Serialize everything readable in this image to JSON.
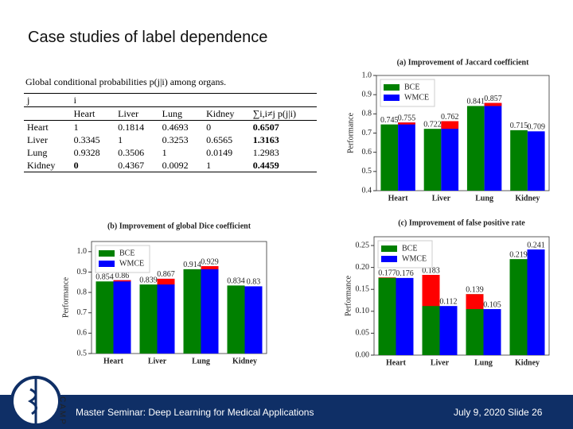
{
  "title": "Case studies of label dependence",
  "table": {
    "caption": "Global conditional probabilities p(j|i) among organs.",
    "header_top": [
      "j",
      "i"
    ],
    "columns": [
      "Heart",
      "Liver",
      "Lung",
      "Kidney",
      "∑i,i≠j p(j|i)"
    ],
    "rows": [
      [
        "Heart",
        "1",
        "0.1814",
        "0.4693",
        "0",
        "0.6507"
      ],
      [
        "Liver",
        "0.3345",
        "1",
        "0.3253",
        "0.6565",
        "1.3163"
      ],
      [
        "Lung",
        "0.9328",
        "0.3506",
        "1",
        "0.0149",
        "1.2983"
      ],
      [
        "Kidney",
        "0",
        "0.4367",
        "0.0092",
        "1",
        "0.4459"
      ]
    ]
  },
  "footer": {
    "left": "Master Seminar: Deep Learning for Medical Applications",
    "right": "July 9, 2020  Slide 26"
  },
  "logo_text": "CAMP",
  "chart_data": [
    {
      "type": "bar",
      "title": "(a) Improvement of Jaccard coefficient",
      "y_label": "Performance",
      "categories": [
        "Heart",
        "Liver",
        "Lung",
        "Kidney"
      ],
      "series": [
        {
          "name": "BCE",
          "color": "#008000",
          "values": [
            0.745,
            0.722,
            0.841,
            0.715
          ]
        },
        {
          "name": "WMCE",
          "color": "#0000ff",
          "values": [
            0.755,
            0.762,
            0.857,
            0.709
          ]
        }
      ],
      "highlight_series": 1,
      "highlight_color": "#ff0000",
      "ylim": [
        0.4,
        1.0
      ],
      "yticks": [
        0.4,
        0.5,
        0.6,
        0.7,
        0.8,
        0.9,
        {
          "value": 1.0,
          "label": "1.0"
        }
      ],
      "legend": "upper left"
    },
    {
      "type": "bar",
      "title": "(b) Improvement of global Dice coefficient",
      "y_label": "Performance",
      "categories": [
        "Heart",
        "Liver",
        "Lung",
        "Kidney"
      ],
      "series": [
        {
          "name": "BCE",
          "color": "#008000",
          "values": [
            0.854,
            0.839,
            0.914,
            0.834
          ]
        },
        {
          "name": "WMCE",
          "color": "#0000ff",
          "values": [
            0.86,
            0.867,
            0.929,
            0.83
          ]
        }
      ],
      "highlight_series": 1,
      "highlight_color": "#ff0000",
      "ylim": [
        0.5,
        1.05
      ],
      "yticks": [
        0.5,
        0.6,
        0.7,
        0.8,
        0.9,
        {
          "value": 1.0,
          "label": "1.0"
        }
      ],
      "legend": "upper left"
    },
    {
      "type": "bar",
      "title": "(c) Improvement of false positive rate",
      "y_label": "Performance",
      "categories": [
        "Heart",
        "Liver",
        "Lung",
        "Kidney"
      ],
      "series": [
        {
          "name": "BCE",
          "color": "#008000",
          "values": [
            0.177,
            0.183,
            0.139,
            0.219
          ]
        },
        {
          "name": "WMCE",
          "color": "#0000ff",
          "values": [
            0.176,
            0.112,
            0.105,
            0.241
          ]
        }
      ],
      "highlight_series": 0,
      "highlight_color": "#ff0000",
      "ylim": [
        0,
        0.27
      ],
      "yticks": [
        {
          "value": 0,
          "label": "0.00"
        },
        0.05,
        {
          "value": 0.1,
          "label": "0.10"
        },
        0.15,
        {
          "value": 0.2,
          "label": "0.20"
        },
        0.25
      ],
      "legend": "upper left"
    }
  ]
}
